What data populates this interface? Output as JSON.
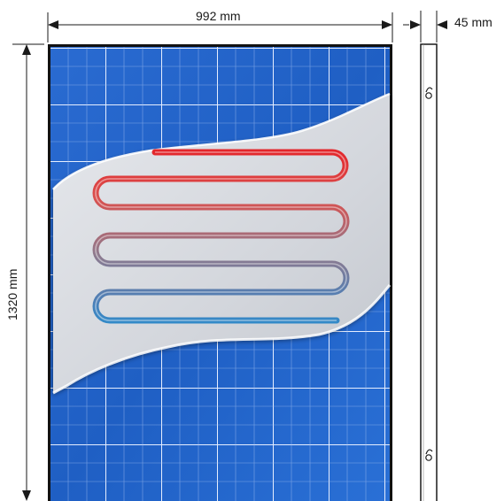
{
  "dimensions": {
    "width_label": "992 mm",
    "height_label": "1320 mm",
    "depth_label": "45 mm"
  },
  "colors": {
    "panel_blue": "#1f5fc4",
    "panel_blue_light": "#3b82e6",
    "cell_grid": "#dbe8ff",
    "absorber_sheet": "#d8dbe1",
    "pipe_hot": "#e3262b",
    "pipe_cold": "#1f93d6",
    "frame": "#1a1a1a"
  },
  "icons": {
    "mount_hook": "mounting-hook-icon",
    "dimension_arrow": "dimension-arrow-icon"
  }
}
